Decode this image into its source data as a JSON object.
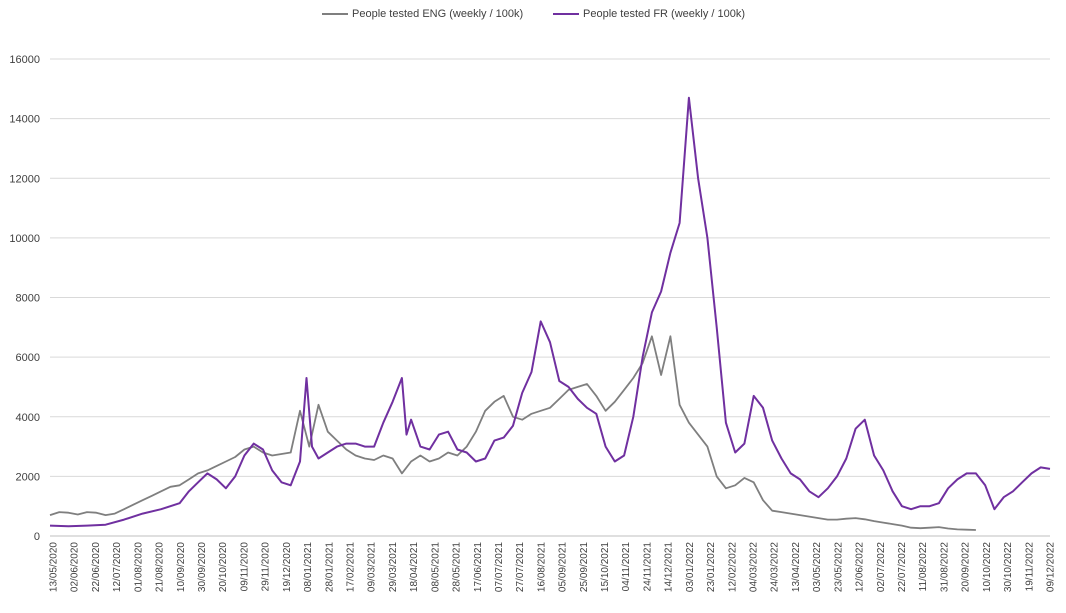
{
  "chart_data": {
    "type": "line",
    "title": "",
    "xlabel": "",
    "ylabel": "",
    "ylim": [
      0,
      16000
    ],
    "yticks": [
      0,
      2000,
      4000,
      6000,
      8000,
      10000,
      12000,
      14000,
      16000
    ],
    "ytick_labels": [
      "0",
      "2000",
      "4000",
      "6000",
      "8000",
      "10000",
      "12000",
      "14000",
      "16000"
    ],
    "grid": true,
    "legend_position": "top",
    "xtick_labels": [
      "13/05/2020",
      "02/06/2020",
      "22/06/2020",
      "12/07/2020",
      "01/08/2020",
      "21/08/2020",
      "10/09/2020",
      "30/09/2020",
      "20/10/2020",
      "09/11/2020",
      "29/11/2020",
      "19/12/2020",
      "08/01/2021",
      "28/01/2021",
      "17/02/2021",
      "09/03/2021",
      "29/03/2021",
      "18/04/2021",
      "08/05/2021",
      "28/05/2021",
      "17/06/2021",
      "07/07/2021",
      "27/07/2021",
      "16/08/2021",
      "05/09/2021",
      "25/09/2021",
      "15/10/2021",
      "04/11/2021",
      "24/11/2021",
      "14/12/2021",
      "03/01/2022",
      "23/01/2022",
      "12/02/2022",
      "04/03/2022",
      "24/03/2022",
      "13/04/2022",
      "03/05/2022",
      "23/05/2022",
      "12/06/2022",
      "02/07/2022",
      "22/07/2022",
      "11/08/2022",
      "31/08/2022",
      "20/09/2022",
      "10/10/2022",
      "30/10/2022",
      "19/11/2022",
      "09/12/2022"
    ],
    "series": [
      {
        "name": "People tested ENG (weekly / 100k)",
        "color": "#7f7f7f",
        "points": [
          [
            0,
            700
          ],
          [
            1,
            800
          ],
          [
            2,
            780
          ],
          [
            3,
            720
          ],
          [
            4,
            800
          ],
          [
            5,
            780
          ],
          [
            6,
            700
          ],
          [
            7,
            750
          ],
          [
            8,
            900
          ],
          [
            9,
            1050
          ],
          [
            10,
            1200
          ],
          [
            11,
            1350
          ],
          [
            12,
            1500
          ],
          [
            13,
            1650
          ],
          [
            14,
            1700
          ],
          [
            15,
            1900
          ],
          [
            16,
            2100
          ],
          [
            17,
            2200
          ],
          [
            18,
            2350
          ],
          [
            19,
            2500
          ],
          [
            20,
            2650
          ],
          [
            21,
            2900
          ],
          [
            22,
            3000
          ],
          [
            23,
            2800
          ],
          [
            24,
            2700
          ],
          [
            25,
            2750
          ],
          [
            26,
            2800
          ],
          [
            27,
            4200
          ],
          [
            28,
            3000
          ],
          [
            29,
            4400
          ],
          [
            30,
            3500
          ],
          [
            31,
            3200
          ],
          [
            32,
            2900
          ],
          [
            33,
            2700
          ],
          [
            34,
            2600
          ],
          [
            35,
            2550
          ],
          [
            36,
            2700
          ],
          [
            37,
            2600
          ],
          [
            38,
            2100
          ],
          [
            39,
            2500
          ],
          [
            40,
            2700
          ],
          [
            41,
            2500
          ],
          [
            42,
            2600
          ],
          [
            43,
            2800
          ],
          [
            44,
            2700
          ],
          [
            45,
            3000
          ],
          [
            46,
            3500
          ],
          [
            47,
            4200
          ],
          [
            48,
            4500
          ],
          [
            49,
            4700
          ],
          [
            50,
            4000
          ],
          [
            51,
            3900
          ],
          [
            52,
            4100
          ],
          [
            53,
            4200
          ],
          [
            54,
            4300
          ],
          [
            55,
            4600
          ],
          [
            56,
            4900
          ],
          [
            57,
            5000
          ],
          [
            58,
            5100
          ],
          [
            59,
            4700
          ],
          [
            60,
            4200
          ],
          [
            61,
            4500
          ],
          [
            62,
            4900
          ],
          [
            63,
            5300
          ],
          [
            64,
            5800
          ],
          [
            65,
            6700
          ],
          [
            66,
            5400
          ],
          [
            67,
            6700
          ],
          [
            68,
            4400
          ],
          [
            69,
            3800
          ],
          [
            70,
            3400
          ],
          [
            71,
            3000
          ],
          [
            72,
            2000
          ],
          [
            73,
            1600
          ],
          [
            74,
            1700
          ],
          [
            75,
            1950
          ],
          [
            76,
            1800
          ],
          [
            77,
            1200
          ],
          [
            78,
            850
          ],
          [
            79,
            800
          ],
          [
            80,
            750
          ],
          [
            81,
            700
          ],
          [
            82,
            650
          ],
          [
            83,
            600
          ],
          [
            84,
            550
          ],
          [
            85,
            550
          ],
          [
            86,
            580
          ],
          [
            87,
            600
          ],
          [
            88,
            560
          ],
          [
            89,
            500
          ],
          [
            90,
            450
          ],
          [
            91,
            400
          ],
          [
            92,
            350
          ],
          [
            93,
            280
          ],
          [
            94,
            260
          ],
          [
            95,
            280
          ],
          [
            96,
            300
          ],
          [
            97,
            250
          ],
          [
            98,
            220
          ],
          [
            99,
            210
          ],
          [
            100,
            200
          ]
        ]
      },
      {
        "name": "People tested FR (weekly / 100k)",
        "color": "#7030a0",
        "points": [
          [
            0,
            350
          ],
          [
            2,
            330
          ],
          [
            4,
            350
          ],
          [
            6,
            380
          ],
          [
            8,
            550
          ],
          [
            10,
            750
          ],
          [
            12,
            900
          ],
          [
            14,
            1100
          ],
          [
            15,
            1500
          ],
          [
            16,
            1800
          ],
          [
            17,
            2100
          ],
          [
            18,
            1900
          ],
          [
            19,
            1600
          ],
          [
            20,
            2000
          ],
          [
            21,
            2700
          ],
          [
            22,
            3100
          ],
          [
            23,
            2900
          ],
          [
            24,
            2200
          ],
          [
            25,
            1800
          ],
          [
            26,
            1700
          ],
          [
            27,
            2500
          ],
          [
            27.7,
            5300
          ],
          [
            28.3,
            3000
          ],
          [
            29,
            2600
          ],
          [
            30,
            2800
          ],
          [
            31,
            3000
          ],
          [
            32,
            3100
          ],
          [
            33,
            3100
          ],
          [
            34,
            3000
          ],
          [
            35,
            3000
          ],
          [
            36,
            3800
          ],
          [
            37,
            4500
          ],
          [
            38,
            5300
          ],
          [
            38.5,
            3400
          ],
          [
            39,
            3900
          ],
          [
            40,
            3000
          ],
          [
            41,
            2900
          ],
          [
            42,
            3400
          ],
          [
            43,
            3500
          ],
          [
            44,
            2900
          ],
          [
            45,
            2800
          ],
          [
            46,
            2500
          ],
          [
            47,
            2600
          ],
          [
            48,
            3200
          ],
          [
            49,
            3300
          ],
          [
            50,
            3700
          ],
          [
            51,
            4800
          ],
          [
            52,
            5500
          ],
          [
            53,
            7200
          ],
          [
            54,
            6500
          ],
          [
            55,
            5200
          ],
          [
            56,
            5000
          ],
          [
            57,
            4600
          ],
          [
            58,
            4300
          ],
          [
            59,
            4100
          ],
          [
            60,
            3000
          ],
          [
            61,
            2500
          ],
          [
            62,
            2700
          ],
          [
            63,
            4000
          ],
          [
            64,
            6000
          ],
          [
            65,
            7500
          ],
          [
            66,
            8200
          ],
          [
            67,
            9500
          ],
          [
            68,
            10500
          ],
          [
            69,
            14700
          ],
          [
            70,
            12000
          ],
          [
            71,
            10000
          ],
          [
            72,
            7000
          ],
          [
            73,
            3800
          ],
          [
            74,
            2800
          ],
          [
            75,
            3100
          ],
          [
            76,
            4700
          ],
          [
            77,
            4300
          ],
          [
            78,
            3200
          ],
          [
            79,
            2600
          ],
          [
            80,
            2100
          ],
          [
            81,
            1900
          ],
          [
            82,
            1500
          ],
          [
            83,
            1300
          ],
          [
            84,
            1600
          ],
          [
            85,
            2000
          ],
          [
            86,
            2600
          ],
          [
            87,
            3600
          ],
          [
            88,
            3900
          ],
          [
            89,
            2700
          ],
          [
            90,
            2200
          ],
          [
            91,
            1500
          ],
          [
            92,
            1000
          ],
          [
            93,
            900
          ],
          [
            94,
            1000
          ],
          [
            95,
            1000
          ],
          [
            96,
            1100
          ],
          [
            97,
            1600
          ],
          [
            98,
            1900
          ],
          [
            99,
            2100
          ],
          [
            100,
            2100
          ],
          [
            101,
            1700
          ],
          [
            102,
            900
          ],
          [
            103,
            1300
          ],
          [
            104,
            1500
          ],
          [
            105,
            1800
          ],
          [
            106,
            2100
          ],
          [
            107,
            2300
          ],
          [
            108,
            2250
          ]
        ]
      }
    ]
  }
}
